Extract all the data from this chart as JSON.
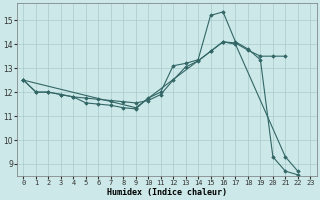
{
  "xlabel": "Humidex (Indice chaleur)",
  "xlim": [
    -0.5,
    23.5
  ],
  "ylim": [
    8.5,
    15.7
  ],
  "yticks": [
    9,
    10,
    11,
    12,
    13,
    14,
    15
  ],
  "xticks": [
    0,
    1,
    2,
    3,
    4,
    5,
    6,
    7,
    8,
    9,
    10,
    11,
    12,
    13,
    14,
    15,
    16,
    17,
    18,
    19,
    20,
    21,
    22,
    23
  ],
  "bg_color": "#cce8e8",
  "grid_color": "#aacccc",
  "line_color": "#336666",
  "line1_x": [
    0,
    1,
    2,
    3,
    4,
    5,
    6,
    7,
    8,
    9,
    10,
    11,
    12,
    13,
    14,
    15,
    16,
    17,
    18,
    19,
    20,
    21,
    22
  ],
  "line1_y": [
    12.5,
    12.0,
    12.0,
    11.9,
    11.8,
    11.55,
    11.5,
    11.45,
    11.35,
    11.3,
    11.75,
    12.0,
    13.1,
    13.2,
    13.35,
    15.2,
    15.35,
    14.1,
    13.8,
    13.35,
    9.3,
    8.7,
    8.55
  ],
  "line2_x": [
    0,
    1,
    2,
    3,
    4,
    5,
    6,
    7,
    8,
    9,
    10,
    11,
    12,
    13,
    14,
    15,
    16,
    17,
    18,
    19,
    20,
    21
  ],
  "line2_y": [
    12.5,
    12.0,
    12.0,
    11.9,
    11.8,
    11.75,
    11.7,
    11.65,
    11.6,
    11.55,
    11.65,
    11.9,
    12.5,
    13.05,
    13.3,
    13.7,
    14.1,
    14.05,
    13.75,
    13.5,
    13.5,
    13.5
  ],
  "line3_x": [
    0,
    9,
    15,
    16,
    17,
    21,
    22
  ],
  "line3_y": [
    12.5,
    11.35,
    13.7,
    14.1,
    14.0,
    9.3,
    8.7
  ],
  "figsize": [
    3.2,
    2.0
  ],
  "dpi": 100
}
